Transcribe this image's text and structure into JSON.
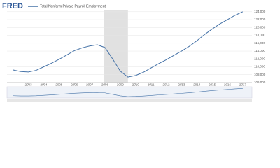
{
  "logo": "FRED",
  "chart_data": {
    "type": "line",
    "series": [
      {
        "name": "Total Nonfarm Private Payroll Employment",
        "color": "#4572a7",
        "values": [
          109200,
          108800,
          108700,
          109100,
          110000,
          110900,
          111900,
          113000,
          114100,
          114800,
          115300,
          115600,
          114900,
          112000,
          108900,
          107400,
          107800,
          108600,
          109700,
          110800,
          111800,
          112900,
          114000,
          115200,
          116600,
          118200,
          119600,
          120900,
          122000,
          123100,
          124000
        ]
      }
    ],
    "x": [
      2002.0,
      2002.5,
      2003.0,
      2003.5,
      2004.0,
      2004.5,
      2005.0,
      2005.5,
      2006.0,
      2006.5,
      2007.0,
      2007.5,
      2008.0,
      2008.5,
      2009.0,
      2009.5,
      2010.0,
      2010.5,
      2011.0,
      2011.5,
      2012.0,
      2012.5,
      2013.0,
      2013.5,
      2014.0,
      2014.5,
      2015.0,
      2015.5,
      2016.0,
      2016.5,
      2017.0
    ],
    "xlim": [
      2001.6,
      2017.6
    ],
    "xticks": [
      2003,
      2004,
      2005,
      2006,
      2007,
      2008,
      2009,
      2010,
      2011,
      2012,
      2013,
      2014,
      2015,
      2016,
      2017
    ],
    "ylim": [
      106000,
      124500
    ],
    "yticks": [
      {
        "value": 106000,
        "label": "106,000"
      },
      {
        "value": 108000,
        "label": "108,000"
      },
      {
        "value": 110000,
        "label": "110,000"
      },
      {
        "value": 112000,
        "label": "112,000"
      },
      {
        "value": 114000,
        "label": "114,000"
      },
      {
        "value": 116000,
        "label": "116,000"
      },
      {
        "value": 118000,
        "label": "118,000"
      },
      {
        "value": 120000,
        "label": "120,000"
      },
      {
        "value": 122000,
        "label": "122,000"
      },
      {
        "value": 124000,
        "label": "124,000"
      }
    ],
    "recessions": [
      [
        2007.92,
        2009.5
      ]
    ],
    "grid": true
  }
}
